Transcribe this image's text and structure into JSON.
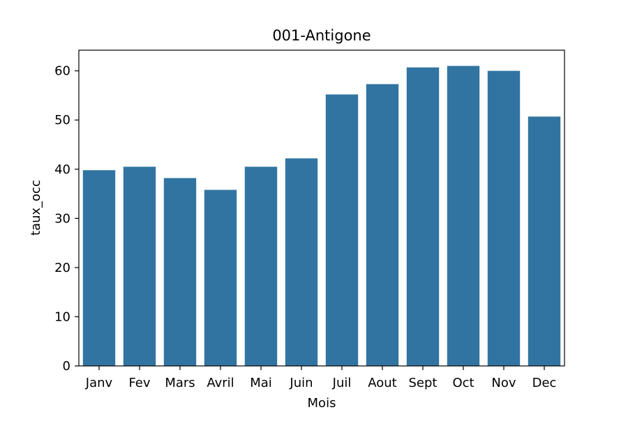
{
  "chart_data": {
    "type": "bar",
    "title": "001-Antigone",
    "xlabel": "Mois",
    "ylabel": "taux_occ",
    "categories": [
      "Janv",
      "Fev",
      "Mars",
      "Avril",
      "Mai",
      "Juin",
      "Juil",
      "Aout",
      "Sept",
      "Oct",
      "Nov",
      "Dec"
    ],
    "values": [
      39.8,
      40.5,
      38.2,
      35.8,
      40.5,
      42.2,
      55.2,
      57.3,
      60.7,
      61.0,
      60.0,
      50.7
    ],
    "ylim": [
      0,
      64.2
    ],
    "yticks": [
      "0",
      "10",
      "20",
      "30",
      "40",
      "50",
      "60"
    ],
    "bar_color": "#3274a1",
    "grid": false
  }
}
